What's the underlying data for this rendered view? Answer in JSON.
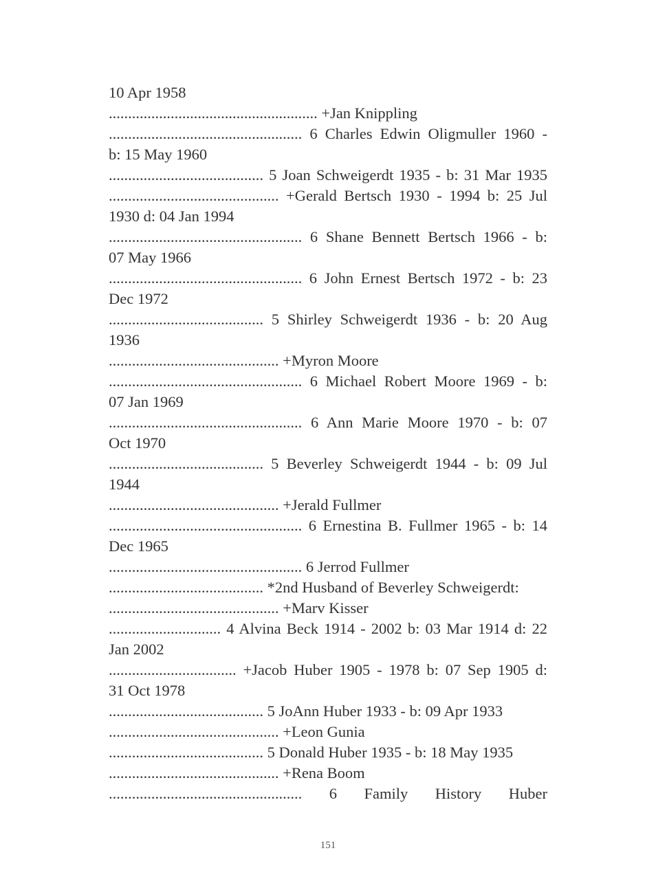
{
  "lines": [
    {
      "text": "10 Apr 1958",
      "justify": false
    },
    {
      "text": "...................................................... +Jan Knippling",
      "justify": false
    },
    {
      "text": ".................................................. 6 Charles Edwin Oligmuller 1960 -",
      "justify": true
    },
    {
      "text": "b: 15 May 1960",
      "justify": false
    },
    {
      "text": "........................................ 5 Joan Schweigerdt 1935 - b: 31 Mar 1935",
      "justify": true
    },
    {
      "text": "............................................ +Gerald Bertsch 1930 - 1994 b: 25 Jul",
      "justify": true
    },
    {
      "text": "1930 d: 04 Jan 1994",
      "justify": false
    },
    {
      "text": ".................................................. 6 Shane Bennett Bertsch 1966 - b:",
      "justify": true
    },
    {
      "text": "07 May 1966",
      "justify": false
    },
    {
      "text": ".................................................. 6 John Ernest Bertsch 1972 - b: 23",
      "justify": true
    },
    {
      "text": "Dec 1972",
      "justify": false
    },
    {
      "text": "........................................ 5 Shirley Schweigerdt 1936 - b: 20 Aug",
      "justify": true
    },
    {
      "text": "1936",
      "justify": false
    },
    {
      "text": "............................................ +Myron Moore",
      "justify": false
    },
    {
      "text": ".................................................. 6 Michael Robert Moore 1969 - b:",
      "justify": true
    },
    {
      "text": "07 Jan 1969",
      "justify": false
    },
    {
      "text": ".................................................. 6 Ann Marie Moore 1970 - b: 07",
      "justify": true
    },
    {
      "text": "Oct 1970",
      "justify": false
    },
    {
      "text": "........................................ 5 Beverley Schweigerdt 1944 - b: 09 Jul",
      "justify": true
    },
    {
      "text": "1944",
      "justify": false
    },
    {
      "text": "............................................ +Jerald Fullmer",
      "justify": false
    },
    {
      "text": ".................................................. 6 Ernestina B. Fullmer 1965 - b: 14",
      "justify": true
    },
    {
      "text": "Dec 1965",
      "justify": false
    },
    {
      "text": ".................................................. 6 Jerrod Fullmer",
      "justify": false
    },
    {
      "text": "........................................ *2nd Husband of Beverley Schweigerdt:",
      "justify": false
    },
    {
      "text": "............................................ +Marv Kisser",
      "justify": false
    },
    {
      "text": "............................. 4 Alvina Beck 1914 - 2002 b: 03 Mar 1914 d: 22",
      "justify": true
    },
    {
      "text": "Jan 2002",
      "justify": false
    },
    {
      "text": "................................. +Jacob Huber 1905 - 1978 b: 07 Sep 1905 d:",
      "justify": true
    },
    {
      "text": "31 Oct 1978",
      "justify": false
    },
    {
      "text": "........................................ 5 JoAnn Huber 1933 - b: 09 Apr 1933",
      "justify": false
    },
    {
      "text": "............................................ +Leon Gunia",
      "justify": false
    },
    {
      "text": "........................................ 5 Donald Huber 1935 - b: 18 May 1935",
      "justify": false
    },
    {
      "text": "............................................ +Rena Boom",
      "justify": false
    },
    {
      "text": ".................................................. 6 Family History Huber",
      "justify": true
    }
  ],
  "page_number": "151"
}
